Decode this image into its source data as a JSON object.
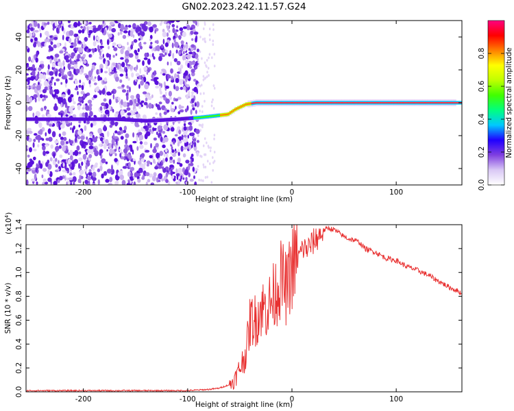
{
  "chart_data": [
    {
      "type": "heatmap",
      "title": "GN02.2023.242.11.57.G24",
      "xlabel": "Height of straight line (km)",
      "ylabel": "Frequency (Hz)",
      "xlim": [
        -255,
        163
      ],
      "ylim": [
        -50,
        50
      ],
      "xticks": [
        -200,
        -100,
        0,
        100
      ],
      "yticks": [
        -40,
        -20,
        0,
        20,
        40
      ],
      "colorbar": {
        "label": "Normalized spectral amplitude",
        "range": [
          0,
          1
        ],
        "ticks": [
          "0.0",
          "0.2",
          "0.4",
          "0.6",
          "0.8"
        ],
        "colors": [
          "#ffffff",
          "#d9c8f5",
          "#8040e0",
          "#2000ff",
          "#00c8ff",
          "#00ff80",
          "#40ff00",
          "#c0ff00",
          "#ffff00",
          "#ff8000",
          "#ff0000",
          "#ff0080"
        ]
      },
      "noise_region": {
        "x_from": -255,
        "x_to": -90
      },
      "ridge": {
        "x": [
          -255,
          -200,
          -170,
          -140,
          -110,
          -90,
          -75,
          -62,
          -55,
          -45,
          -35,
          -20,
          0,
          50,
          100,
          163
        ],
        "y": [
          -10,
          -10,
          -10,
          -11,
          -10,
          -9,
          -8,
          -7,
          -4,
          -1,
          0,
          0,
          0,
          0,
          0,
          0
        ]
      },
      "grid": false,
      "legend": "none"
    },
    {
      "type": "line",
      "title": "",
      "xlabel": "Height of straight line (km)",
      "ylabel": "SNR (10 * v/v)",
      "y_multiplier": "(x10",
      "y_multiplier_exp": "4",
      "y_multiplier_close": ")",
      "xlim": [
        -255,
        163
      ],
      "ylim": [
        0,
        1.4
      ],
      "xticks": [
        -200,
        -100,
        0,
        100
      ],
      "yticks": [
        "0.0",
        "0.2",
        "0.4",
        "0.6",
        "0.8",
        "1.0",
        "1.2",
        "1.4"
      ],
      "series": [
        {
          "color": "#e83030",
          "x": [
            -255,
            -200,
            -150,
            -100,
            -80,
            -70,
            -60,
            -55,
            -50,
            -45,
            -42,
            -40,
            -35,
            -30,
            -25,
            -20,
            -15,
            -10,
            -5,
            0,
            5,
            10,
            15,
            20,
            25,
            30,
            35,
            40,
            45,
            50,
            55,
            60,
            65,
            70,
            80,
            90,
            100,
            110,
            120,
            130,
            140,
            150,
            160,
            163
          ],
          "y": [
            0.01,
            0.01,
            0.01,
            0.01,
            0.02,
            0.03,
            0.06,
            0.1,
            0.2,
            0.3,
            0.45,
            0.6,
            0.6,
            0.7,
            0.7,
            0.75,
            0.85,
            0.95,
            0.85,
            1.05,
            1.1,
            1.2,
            1.2,
            1.25,
            1.3,
            1.35,
            1.37,
            1.36,
            1.33,
            1.3,
            1.28,
            1.27,
            1.25,
            1.2,
            1.17,
            1.12,
            1.1,
            1.05,
            1.02,
            0.98,
            0.93,
            0.88,
            0.84,
            0.82
          ]
        }
      ],
      "grid": false,
      "legend": "none"
    }
  ]
}
